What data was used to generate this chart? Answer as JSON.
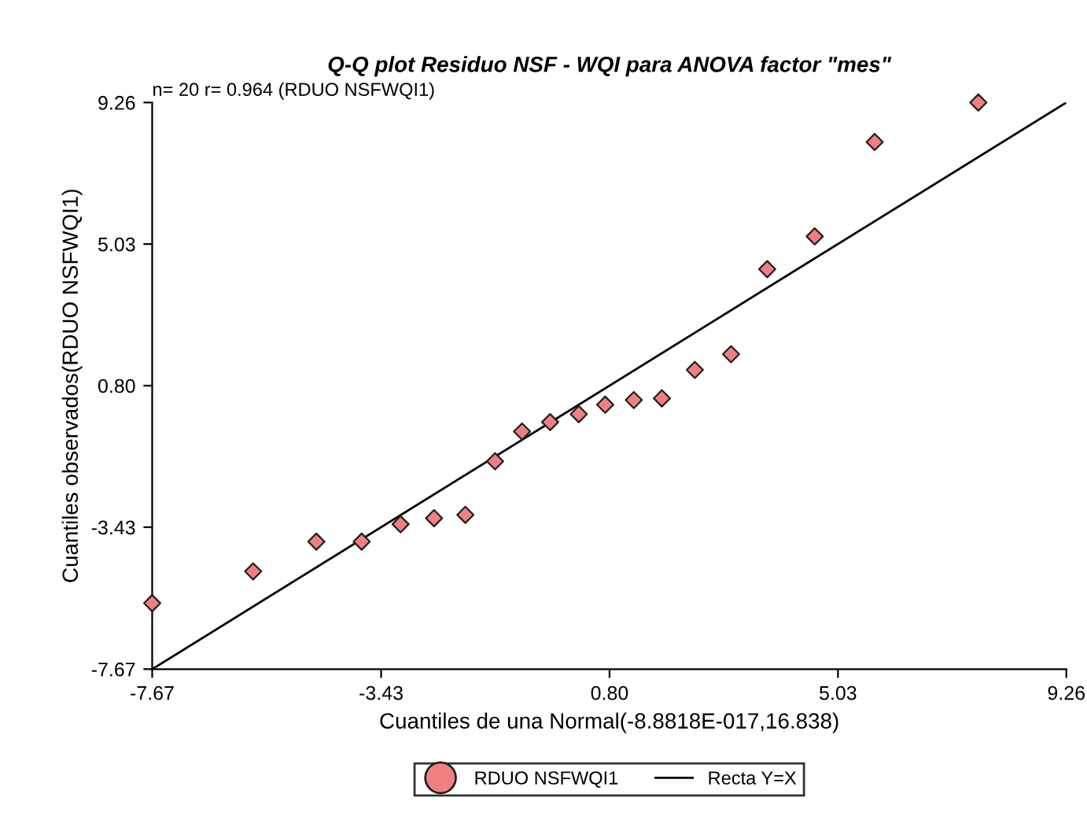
{
  "chart_data": {
    "type": "scatter",
    "title": "Q-Q plot Residuo NSF - WQI para ANOVA factor \"mes\"",
    "xlabel": "Cuantiles de una Normal(-8.8818E-017,16.838)",
    "ylabel": "Cuantiles observados(RDUO NSFWQI1)",
    "annotations": [
      "n= 20 r= 0.964 (RDUO NSFWQI1)"
    ],
    "series": [
      {
        "name": "RDUO NSFWQI1",
        "color": "#f08080",
        "marker": "diamond",
        "x": [
          -7.67,
          -5.8,
          -4.63,
          -3.79,
          -3.07,
          -2.45,
          -1.87,
          -1.32,
          -0.82,
          -0.3,
          0.23,
          0.72,
          1.25,
          1.77,
          2.38,
          3.05,
          3.72,
          4.6,
          5.71,
          7.63
        ],
        "values": [
          -5.7,
          -4.75,
          -3.86,
          -3.86,
          -3.34,
          -3.16,
          -3.06,
          -1.46,
          -0.57,
          -0.29,
          -0.05,
          0.23,
          0.37,
          0.42,
          1.27,
          1.74,
          4.28,
          5.26,
          8.08,
          9.26
        ]
      },
      {
        "name": "Recta Y=X",
        "type": "line",
        "color": "#000000",
        "line_style": "solid",
        "x": [
          -7.67,
          9.26
        ],
        "values": [
          -7.67,
          9.26
        ]
      }
    ],
    "xlim": [
      -7.67,
      9.26
    ],
    "ylim": [
      -7.67,
      9.26
    ],
    "xticks": [
      -7.67,
      -3.43,
      {
        "value": 0.8,
        "label": "0.80"
      },
      5.03,
      9.26
    ],
    "yticks": [
      -7.67,
      -3.43,
      {
        "value": 0.8,
        "label": "0.80"
      },
      5.03,
      9.26
    ],
    "grid": false,
    "legend": "bottom"
  }
}
